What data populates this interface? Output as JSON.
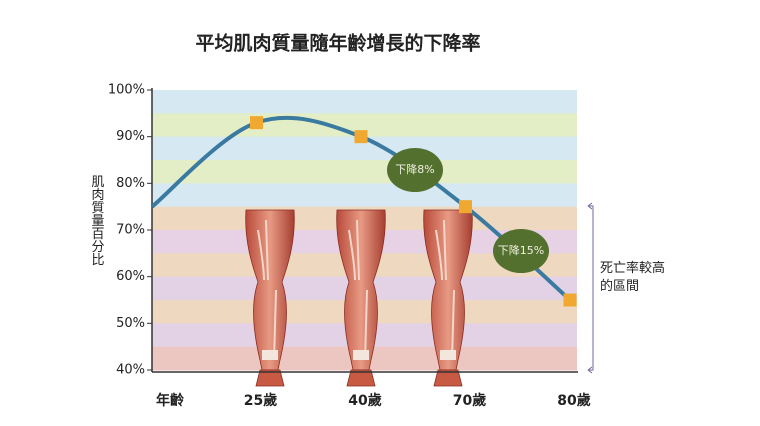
{
  "chart_data": {
    "type": "line",
    "title": "平均肌肉質量隨年齡增長的下降率",
    "x_label": "年齡",
    "y_label": "肌肉質量百分比",
    "categories": [
      null,
      "25歲",
      "40歲",
      "70歲",
      "80歲"
    ],
    "series": [
      {
        "name": null,
        "color": "#3a7aa0",
        "marker_color": "#f0a830",
        "values": [
          75,
          93,
          90,
          75,
          55
        ]
      }
    ],
    "ylim": [
      40,
      100
    ],
    "yticks": [
      {
        "value": 40,
        "label": "40%"
      },
      {
        "value": 50,
        "label": "50%"
      },
      {
        "value": 60,
        "label": "60%"
      },
      {
        "value": 70,
        "label": "70%"
      },
      {
        "value": 80,
        "label": "80%"
      },
      {
        "value": 90,
        "label": "90%"
      },
      {
        "value": 100,
        "label": "100%"
      }
    ],
    "annotations": [
      "下降8%",
      "下降15%"
    ],
    "region_label": "死亡率較高的區間"
  }
}
